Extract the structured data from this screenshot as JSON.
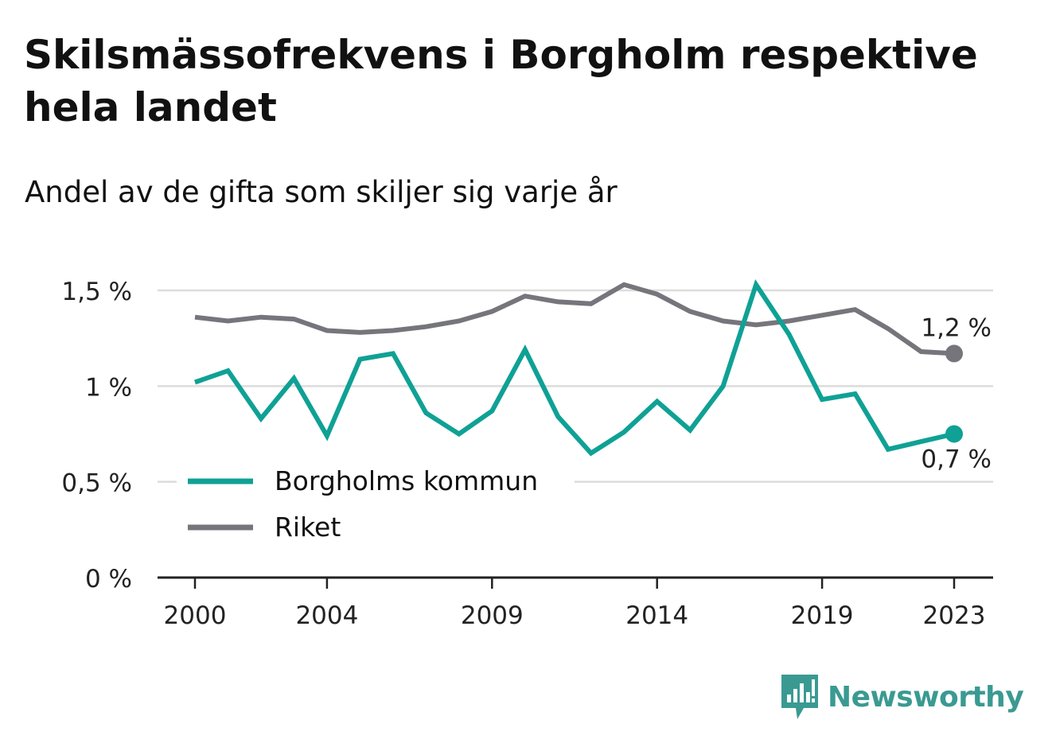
{
  "title": "Skilsmässofrekvens i Borgholm respektive hela landet",
  "subtitle": "Andel av de gifta som skiljer sig varje år",
  "brand": {
    "name": "Newsworthy",
    "icon": "newsworthy-logo-icon",
    "color": "#3a9a92"
  },
  "chart_data": {
    "type": "line",
    "x": [
      2000,
      2001,
      2002,
      2003,
      2004,
      2005,
      2006,
      2007,
      2008,
      2009,
      2010,
      2011,
      2012,
      2013,
      2014,
      2015,
      2016,
      2017,
      2018,
      2019,
      2020,
      2021,
      2022,
      2023
    ],
    "xticks": [
      2000,
      2004,
      2009,
      2014,
      2019,
      2023
    ],
    "yticks": [
      0,
      0.5,
      1,
      1.5
    ],
    "ytick_labels": [
      "0 %",
      "0,5 %",
      "1 %",
      "1,5 %"
    ],
    "ylim": [
      0,
      1.5
    ],
    "grid": true,
    "legend_position": "bottom-left",
    "series": [
      {
        "name": "Borgholms kommun",
        "color": "#0fa195",
        "values": [
          1.02,
          1.08,
          0.83,
          1.04,
          0.74,
          1.14,
          1.17,
          0.86,
          0.75,
          0.87,
          1.19,
          0.84,
          0.65,
          0.76,
          0.92,
          0.77,
          1.0,
          1.53,
          1.27,
          0.93,
          0.96,
          0.67,
          0.71,
          0.75
        ],
        "end_label": "0,7 %"
      },
      {
        "name": "Riket",
        "color": "#76757c",
        "values": [
          1.36,
          1.34,
          1.36,
          1.35,
          1.29,
          1.28,
          1.29,
          1.31,
          1.34,
          1.39,
          1.47,
          1.44,
          1.43,
          1.53,
          1.48,
          1.39,
          1.34,
          1.32,
          1.34,
          1.37,
          1.4,
          1.3,
          1.18,
          1.17
        ],
        "end_label": "1,2 %"
      }
    ]
  }
}
